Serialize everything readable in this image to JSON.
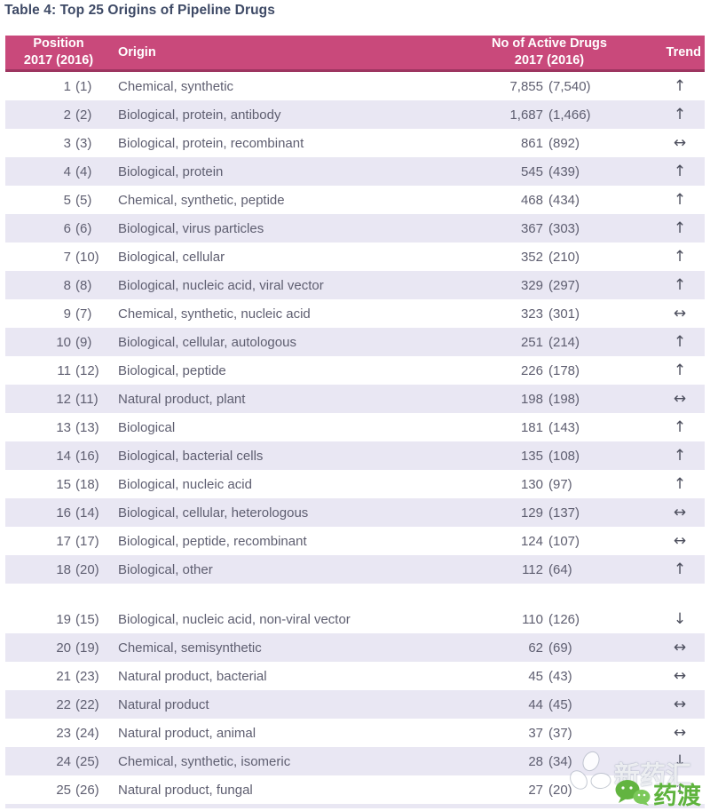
{
  "title": "Table 4: Top 25 Origins of Pipeline Drugs",
  "table": {
    "headers": {
      "position_line1": "Position",
      "position_line2": "2017 (2016)",
      "origin": "Origin",
      "drugs_line1": "No of Active Drugs",
      "drugs_line2": "2017 (2016)",
      "trend": "Trend"
    },
    "gap_after_position": "18",
    "rows": [
      {
        "position": "1",
        "position_prev": "(1)",
        "origin": "Chemical, synthetic",
        "drugs": "7,855",
        "drugs_prev": "(7,540)",
        "trend": "up"
      },
      {
        "position": "2",
        "position_prev": "(2)",
        "origin": "Biological, protein, antibody",
        "drugs": "1,687",
        "drugs_prev": "(1,466)",
        "trend": "up"
      },
      {
        "position": "3",
        "position_prev": "(3)",
        "origin": "Biological, protein, recombinant",
        "drugs": "861",
        "drugs_prev": "(892)",
        "trend": "flat"
      },
      {
        "position": "4",
        "position_prev": "(4)",
        "origin": "Biological, protein",
        "drugs": "545",
        "drugs_prev": "(439)",
        "trend": "up"
      },
      {
        "position": "5",
        "position_prev": "(5)",
        "origin": "Chemical, synthetic, peptide",
        "drugs": "468",
        "drugs_prev": "(434)",
        "trend": "up"
      },
      {
        "position": "6",
        "position_prev": "(6)",
        "origin": "Biological, virus particles",
        "drugs": "367",
        "drugs_prev": "(303)",
        "trend": "up"
      },
      {
        "position": "7",
        "position_prev": "(10)",
        "origin": "Biological, cellular",
        "drugs": "352",
        "drugs_prev": "(210)",
        "trend": "up"
      },
      {
        "position": "8",
        "position_prev": "(8)",
        "origin": "Biological, nucleic acid, viral vector",
        "drugs": "329",
        "drugs_prev": "(297)",
        "trend": "up"
      },
      {
        "position": "9",
        "position_prev": "(7)",
        "origin": "Chemical, synthetic, nucleic acid",
        "drugs": "323",
        "drugs_prev": "(301)",
        "trend": "flat"
      },
      {
        "position": "10",
        "position_prev": "(9)",
        "origin": "Biological, cellular, autologous",
        "drugs": "251",
        "drugs_prev": "(214)",
        "trend": "up"
      },
      {
        "position": "11",
        "position_prev": "(12)",
        "origin": "Biological, peptide",
        "drugs": "226",
        "drugs_prev": "(178)",
        "trend": "up"
      },
      {
        "position": "12",
        "position_prev": "(11)",
        "origin": "Natural product, plant",
        "drugs": "198",
        "drugs_prev": "(198)",
        "trend": "flat"
      },
      {
        "position": "13",
        "position_prev": "(13)",
        "origin": "Biological",
        "drugs": "181",
        "drugs_prev": "(143)",
        "trend": "up"
      },
      {
        "position": "14",
        "position_prev": "(16)",
        "origin": "Biological, bacterial cells",
        "drugs": "135",
        "drugs_prev": "(108)",
        "trend": "up"
      },
      {
        "position": "15",
        "position_prev": "(18)",
        "origin": "Biological, nucleic acid",
        "drugs": "130",
        "drugs_prev": "(97)",
        "trend": "up"
      },
      {
        "position": "16",
        "position_prev": "(14)",
        "origin": "Biological, cellular, heterologous",
        "drugs": "129",
        "drugs_prev": "(137)",
        "trend": "flat"
      },
      {
        "position": "17",
        "position_prev": "(17)",
        "origin": "Biological, peptide, recombinant",
        "drugs": "124",
        "drugs_prev": "(107)",
        "trend": "flat"
      },
      {
        "position": "18",
        "position_prev": "(20)",
        "origin": "Biological, other",
        "drugs": "112",
        "drugs_prev": "(64)",
        "trend": "up"
      },
      {
        "position": "19",
        "position_prev": "(15)",
        "origin": "Biological, nucleic acid, non-viral vector",
        "drugs": "110",
        "drugs_prev": "(126)",
        "trend": "down"
      },
      {
        "position": "20",
        "position_prev": "(19)",
        "origin": "Chemical, semisynthetic",
        "drugs": "62",
        "drugs_prev": "(69)",
        "trend": "flat"
      },
      {
        "position": "21",
        "position_prev": "(23)",
        "origin": "Natural product, bacterial",
        "drugs": "45",
        "drugs_prev": "(43)",
        "trend": "flat"
      },
      {
        "position": "22",
        "position_prev": "(22)",
        "origin": "Natural product",
        "drugs": "44",
        "drugs_prev": "(45)",
        "trend": "flat"
      },
      {
        "position": "23",
        "position_prev": "(24)",
        "origin": "Natural product, animal",
        "drugs": "37",
        "drugs_prev": "(37)",
        "trend": "flat"
      },
      {
        "position": "24",
        "position_prev": "(25)",
        "origin": "Chemical, synthetic, isomeric",
        "drugs": "28",
        "drugs_prev": "(34)",
        "trend": "down"
      },
      {
        "position": "25",
        "position_prev": "(26)",
        "origin": "Natural product, fungal",
        "drugs": "27",
        "drugs_prev": "(20)",
        "trend": "up"
      }
    ]
  },
  "trend_glyphs": {
    "up": "↑",
    "flat": "↔",
    "down": "↓"
  },
  "watermark": {
    "brand1": "新药汇",
    "brand2": "药渡"
  },
  "colors": {
    "header_bg": "#c9497b",
    "header_border": "#9d3560",
    "stripe": "#e9e7f3",
    "title_color": "#3e4a66",
    "row_text": "#5e5e70",
    "arrow_color": "#4d4f5e",
    "watermark_green": "#5eb33d"
  }
}
